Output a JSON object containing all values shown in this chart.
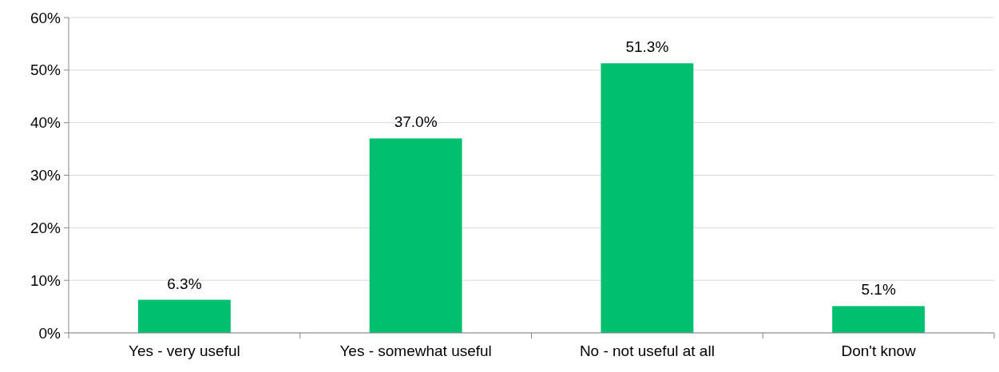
{
  "chart_data": {
    "type": "bar",
    "categories": [
      "Yes - very useful",
      "Yes - somewhat useful",
      "No - not useful at all",
      "Don't know"
    ],
    "values": [
      6.3,
      37.0,
      51.3,
      5.1
    ],
    "value_labels": [
      "6.3%",
      "37.0%",
      "51.3%",
      "5.1%"
    ],
    "color": "#00bf6f",
    "ylim": [
      0,
      60
    ],
    "yticks": [
      {
        "value": 0,
        "label": "0%"
      },
      {
        "value": 10,
        "label": "10%"
      },
      {
        "value": 20,
        "label": "20%"
      },
      {
        "value": 30,
        "label": "30%"
      },
      {
        "value": 40,
        "label": "40%"
      },
      {
        "value": 50,
        "label": "50%"
      },
      {
        "value": 60,
        "label": "60%"
      }
    ],
    "grid": "y"
  }
}
